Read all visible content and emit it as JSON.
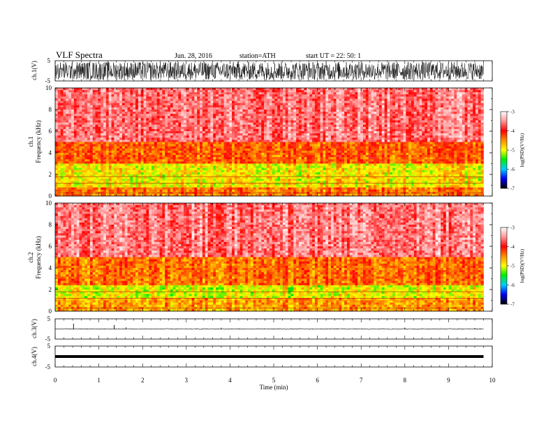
{
  "header": {
    "title": "VLF  Spectra",
    "date": "Jun. 28, 2016",
    "station": "station=ATH",
    "start": "start  UT  =    22: 50: 1"
  },
  "chart_data": [
    {
      "id": "ch1-waveform",
      "type": "line",
      "ylabel": "ch.1(V)",
      "ylim": [
        -5,
        5
      ],
      "y_ticks": [
        "5",
        "-5"
      ],
      "description_values": {
        "amplitude_typical": 4.5,
        "dense_noise": true
      }
    },
    {
      "id": "ch1-spectrogram",
      "type": "heatmap",
      "ylabel": "ch.1\nFrequency  (kHz)",
      "ylabel_lines": [
        "ch.1",
        "Frequency  (kHz)"
      ],
      "ylim": [
        0,
        10
      ],
      "y_ticks": [
        "0",
        "2",
        "4",
        "6",
        "8",
        "10"
      ],
      "y_tick_values": [
        0,
        2,
        4,
        6,
        8,
        10
      ],
      "xlim": [
        0,
        10
      ],
      "data_end_min": 9.8,
      "bands": [
        {
          "f_from": 5,
          "f_to": 10,
          "logPSD": -3.6
        },
        {
          "f_from": 3,
          "f_to": 5,
          "logPSD": -4.3
        },
        {
          "f_from": 0.8,
          "f_to": 3,
          "logPSD": -4.9
        },
        {
          "f_from": 0,
          "f_to": 0.8,
          "logPSD": -4.4
        }
      ],
      "colorbar": {
        "label": "log(PSD)(V²/Hz)",
        "ticks": [
          "-3",
          "-4",
          "-5",
          "-6",
          "-7"
        ],
        "tick_values": [
          -3,
          -4,
          -5,
          -6,
          -7
        ],
        "range": [
          -7,
          -3
        ]
      }
    },
    {
      "id": "ch2-spectrogram",
      "type": "heatmap",
      "ylabel": "ch.2\nFrequency  (kHz)",
      "ylabel_lines": [
        "ch.2",
        "Frequency  (kHz)"
      ],
      "ylim": [
        0,
        10
      ],
      "y_ticks": [
        "0",
        "2",
        "4",
        "6",
        "8",
        "10"
      ],
      "y_tick_values": [
        0,
        2,
        4,
        6,
        8,
        10
      ],
      "xlim": [
        0,
        10
      ],
      "data_end_min": 9.8,
      "bands": [
        {
          "f_from": 5,
          "f_to": 10,
          "logPSD": -3.6
        },
        {
          "f_from": 2.5,
          "f_to": 5,
          "logPSD": -4.4
        },
        {
          "f_from": 1.2,
          "f_to": 2.5,
          "logPSD": -5.0
        },
        {
          "f_from": 0,
          "f_to": 1.2,
          "logPSD": -4.6
        }
      ],
      "colorbar": {
        "label": "log(PSD)(V²/Hz)",
        "ticks": [
          "-3",
          "-4",
          "-5",
          "-6",
          "-7"
        ],
        "tick_values": [
          -3,
          -4,
          -5,
          -6,
          -7
        ],
        "range": [
          -7,
          -3
        ]
      }
    },
    {
      "id": "ch3-waveform",
      "type": "line",
      "ylabel": "ch.3(V)",
      "ylim": [
        -5,
        5
      ],
      "y_ticks": [
        "5",
        "-5"
      ],
      "baseline_V": 0,
      "spikes": [
        {
          "t": 0.42,
          "v": 2.6
        },
        {
          "t": 1.35,
          "v": 2.0
        },
        {
          "t": 1.62,
          "v": 0.8
        },
        {
          "t": 3.8,
          "v": 0.6
        },
        {
          "t": 8.0,
          "v": 0.7
        },
        {
          "t": 9.6,
          "v": 0.5
        }
      ]
    },
    {
      "id": "ch4-waveform",
      "type": "line",
      "ylabel": "ch.4(V)",
      "ylim": [
        -5,
        5
      ],
      "y_ticks": [
        "5",
        "-5"
      ],
      "baseline_V": 0,
      "note_values": {
        "flat": true
      }
    }
  ],
  "x_axis": {
    "label": "Time  (min)",
    "range": [
      0,
      10
    ],
    "ticks": [
      "0",
      "1",
      "2",
      "3",
      "4",
      "5",
      "6",
      "7",
      "8",
      "9",
      "10"
    ],
    "tick_values": [
      0,
      1,
      2,
      3,
      4,
      5,
      6,
      7,
      8,
      9,
      10
    ]
  }
}
